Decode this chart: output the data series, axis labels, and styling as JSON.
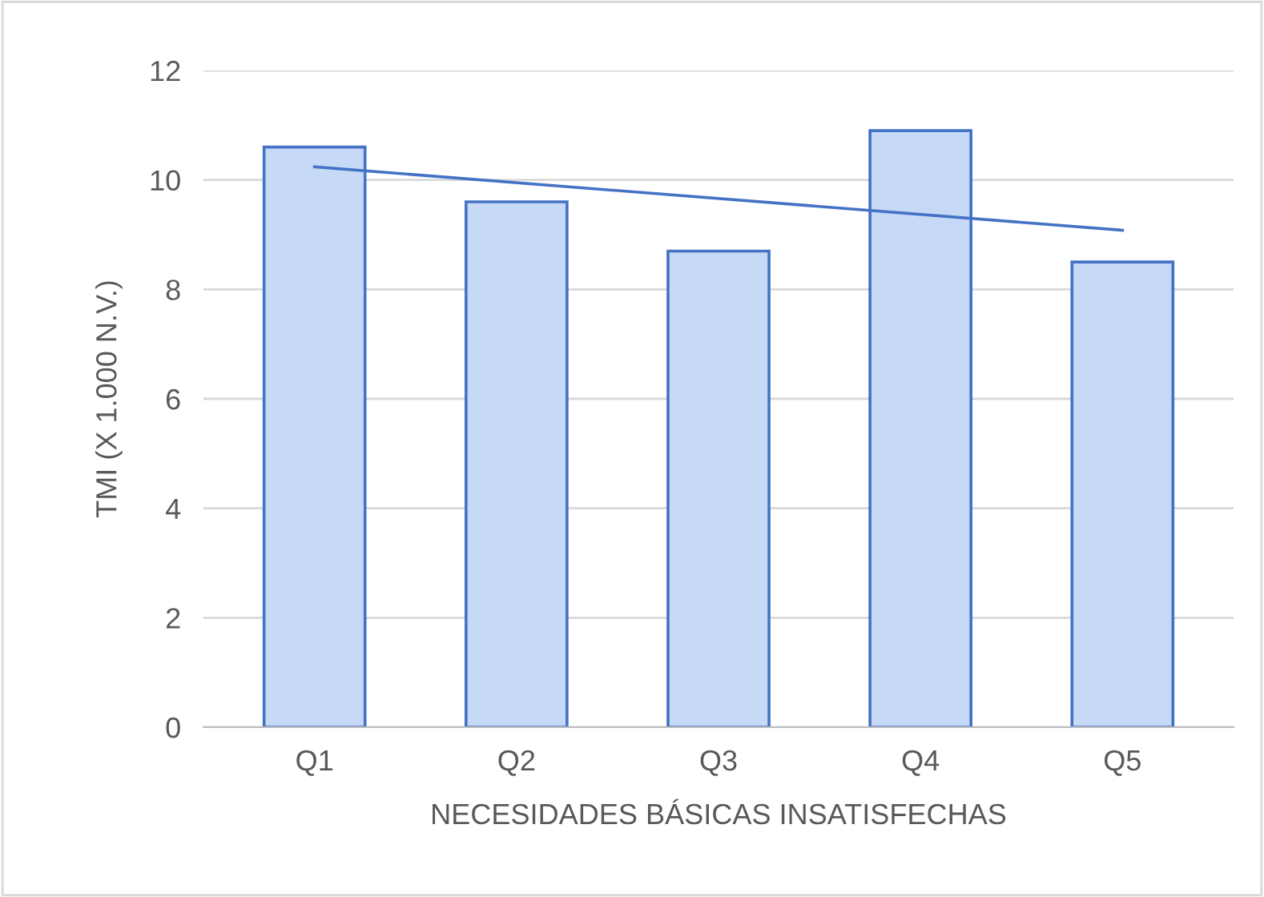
{
  "chart_data": {
    "type": "bar",
    "xlabel": "NECESIDADES BÁSICAS INSATISFECHAS",
    "ylabel": "TMI (X 1.000 N.V.)",
    "categories": [
      "Q1",
      "Q2",
      "Q3",
      "Q4",
      "Q5"
    ],
    "series": [
      {
        "color": "#c6d9f7",
        "values": [
          10.6,
          9.6,
          8.7,
          10.9,
          8.5
        ]
      },
      {
        "type": "line",
        "color": "#4472c4",
        "x": [
          "Q1",
          "Q5"
        ],
        "values": [
          10.24,
          9.08
        ]
      }
    ],
    "ylim": [
      0,
      12
    ],
    "yticks": [
      0,
      2,
      4,
      6,
      8,
      10,
      12
    ],
    "grid": "y"
  }
}
